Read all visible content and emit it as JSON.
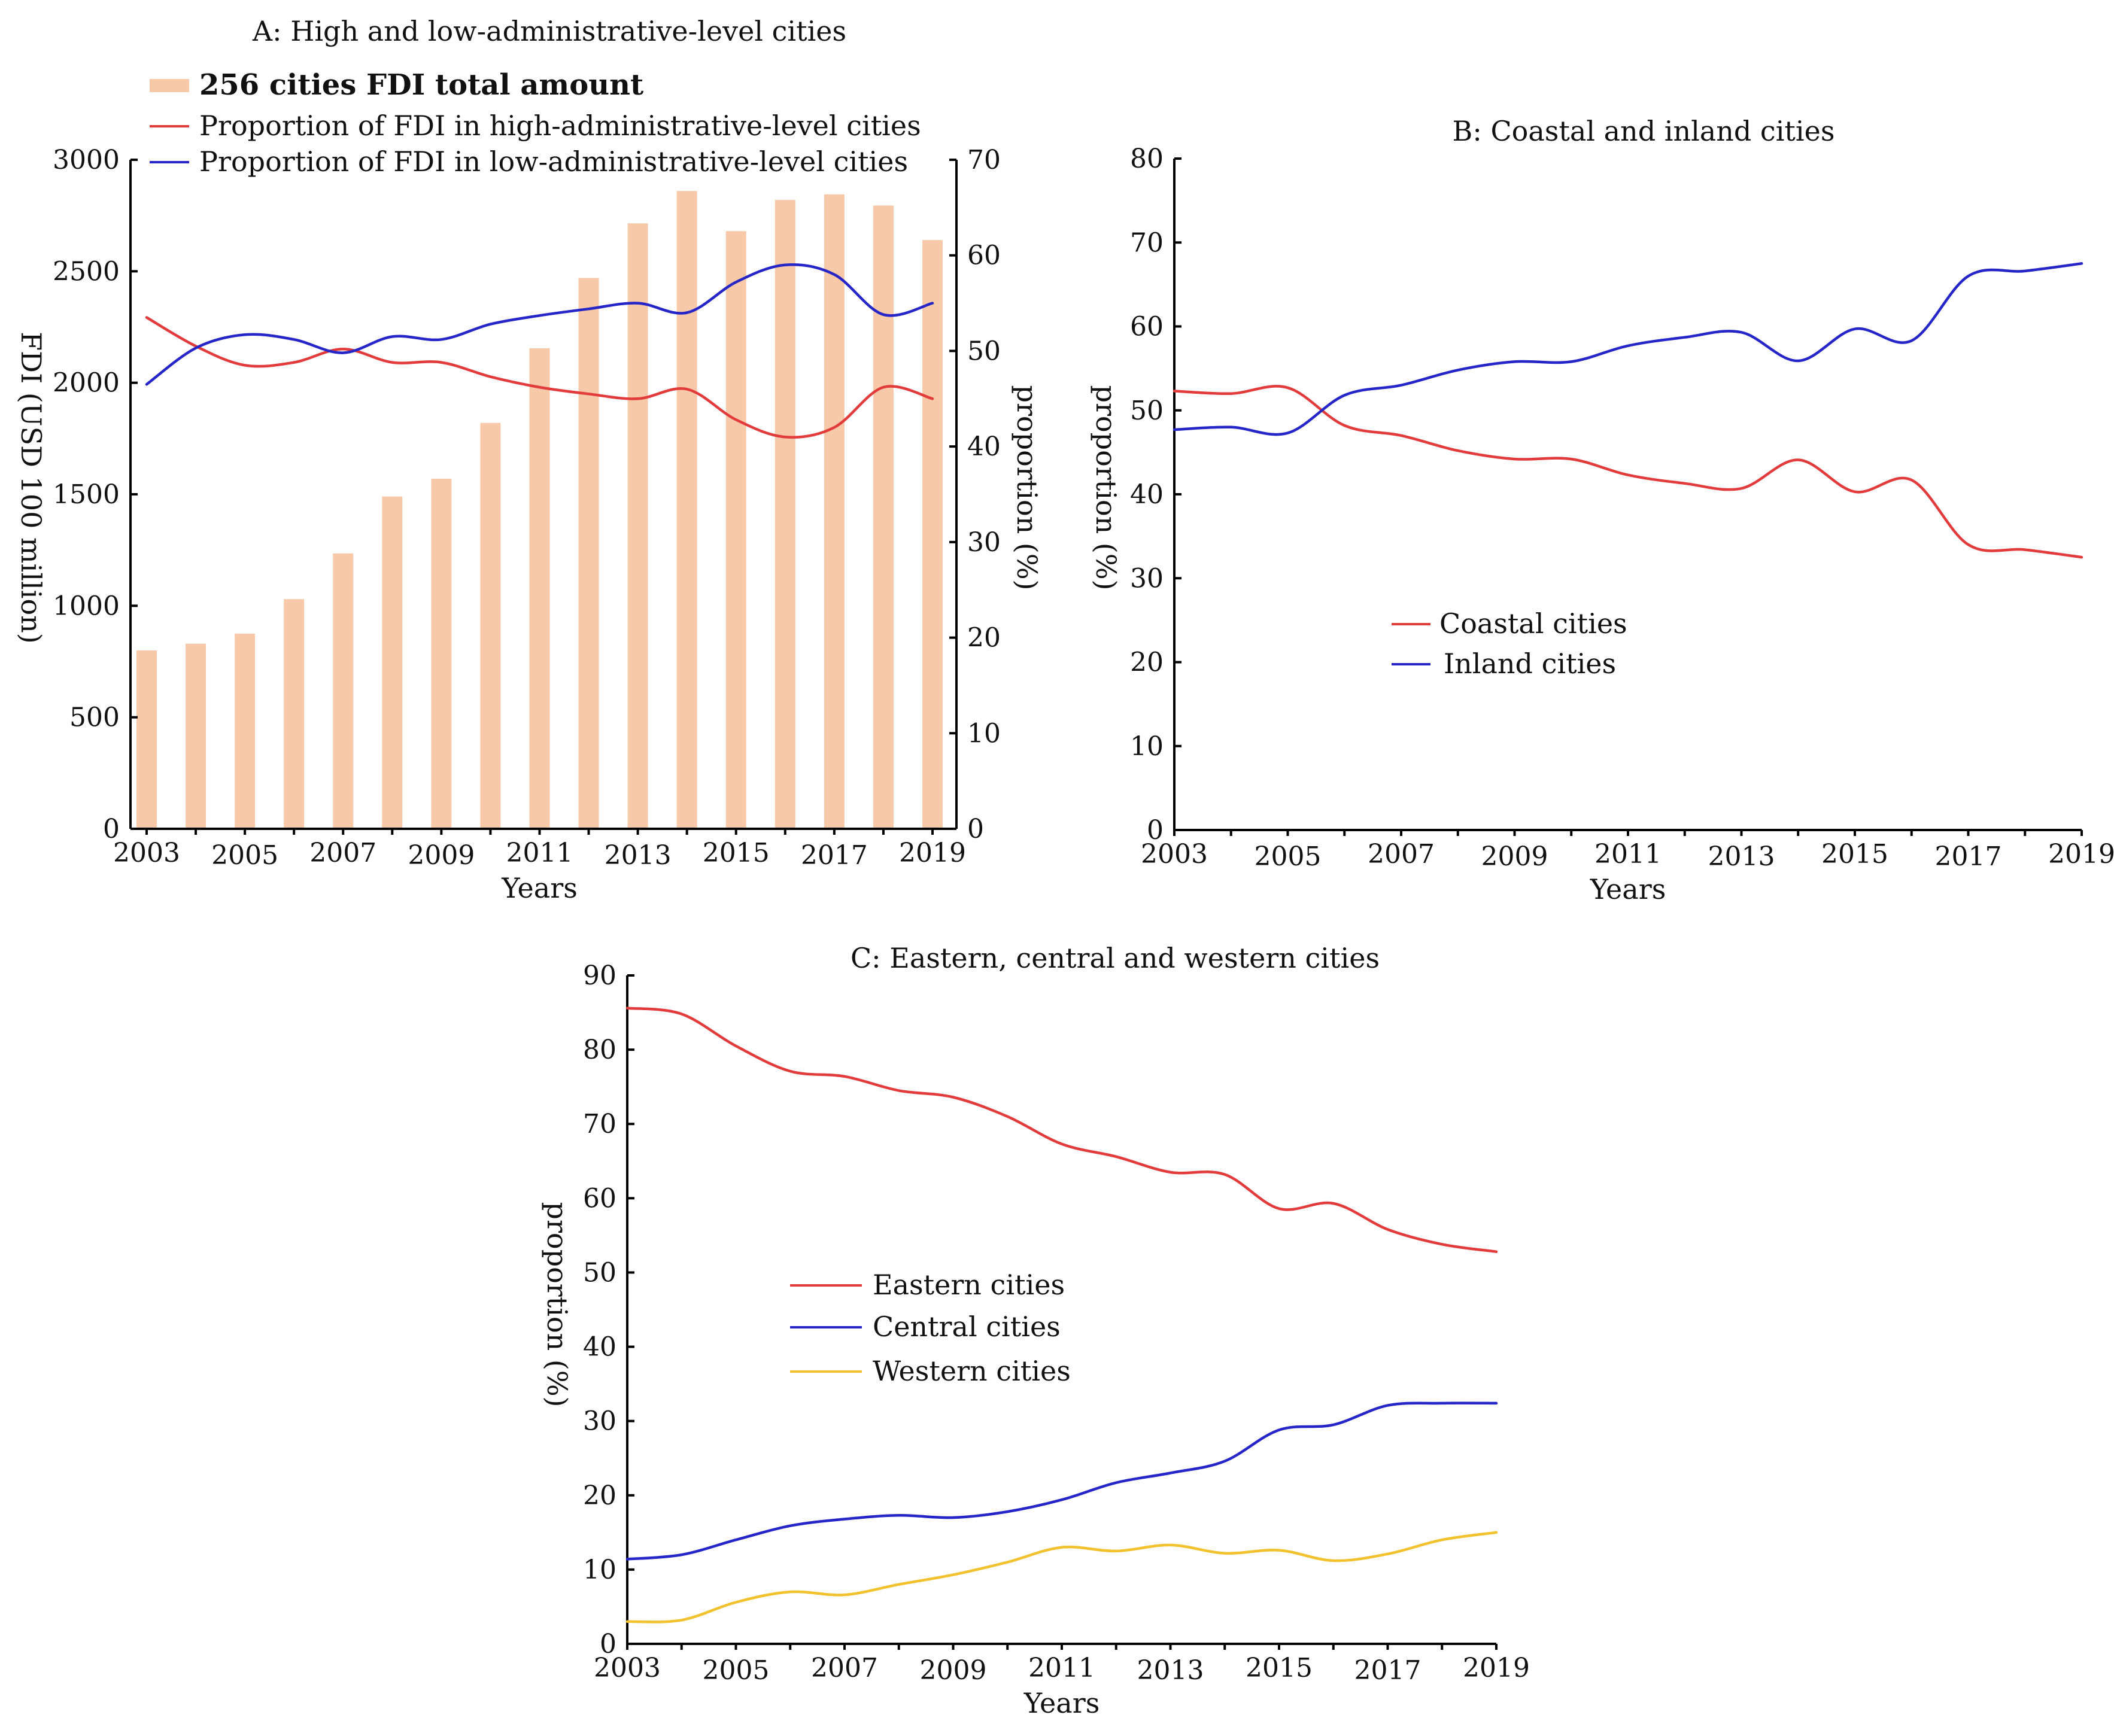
{
  "chart_data": [
    {
      "id": "A",
      "type": "bar+line",
      "title": "A: High and low-administrative-level cities",
      "xlabel": "Years",
      "ylabel_left": "FDI (USD 100 million)",
      "ylabel_right": "proportion (%)",
      "ylim_left": [
        0,
        3000
      ],
      "ylim_right": [
        0,
        70
      ],
      "yticks_left": [
        0,
        500,
        1000,
        1500,
        2000,
        2500,
        3000
      ],
      "yticks_right": [
        0,
        10,
        20,
        30,
        40,
        50,
        60,
        70
      ],
      "xtick_labels": [
        "2003",
        "2005",
        "2007",
        "2009",
        "2011",
        "2013",
        "2015",
        "2017",
        "2019"
      ],
      "categories": [
        "2003",
        "2004",
        "2005",
        "2006",
        "2007",
        "2008",
        "2009",
        "2010",
        "2011",
        "2012",
        "2013",
        "2014",
        "2015",
        "2016",
        "2017",
        "2018",
        "2019"
      ],
      "bars": {
        "name": "256 cities FDI total amount",
        "color": "#f7c9a9",
        "values": [
          800,
          830,
          875,
          1030,
          1235,
          1490,
          1570,
          1820,
          2155,
          2470,
          2715,
          2860,
          2680,
          2820,
          2845,
          2795,
          2640
        ]
      },
      "series": [
        {
          "name": "Proportion of FDI in high-administrative-level cities",
          "color": "#e23b3b",
          "values": [
            53.5,
            50.5,
            48.5,
            48.8,
            50.2,
            48.8,
            48.8,
            47.3,
            46.2,
            45.5,
            45.0,
            46.0,
            42.8,
            41.0,
            42.0,
            46.2,
            45.0
          ]
        },
        {
          "name": "Proportion of FDI in low-administrative-level cities",
          "color": "#2525c8",
          "values": [
            46.5,
            50.3,
            51.7,
            51.2,
            49.8,
            51.5,
            51.2,
            52.8,
            53.7,
            54.4,
            55.0,
            54.0,
            57.2,
            59.0,
            58.0,
            53.8,
            55.0
          ]
        }
      ]
    },
    {
      "id": "B",
      "type": "line",
      "title": "B: Coastal and inland cities",
      "xlabel": "Years",
      "ylabel": "proportion (%)",
      "ylim": [
        0,
        80
      ],
      "yticks": [
        0,
        10,
        20,
        30,
        40,
        50,
        60,
        70,
        80
      ],
      "xtick_labels": [
        "2003",
        "2005",
        "2007",
        "2009",
        "2011",
        "2013",
        "2015",
        "2017",
        "2019"
      ],
      "categories": [
        "2003",
        "2004",
        "2005",
        "2006",
        "2007",
        "2008",
        "2009",
        "2010",
        "2011",
        "2012",
        "2013",
        "2014",
        "2015",
        "2016",
        "2017",
        "2018",
        "2019"
      ],
      "series": [
        {
          "name": "Coastal cities",
          "color": "#e23b3b",
          "values": [
            52.3,
            52.0,
            52.7,
            48.2,
            47.0,
            45.2,
            44.2,
            44.2,
            42.3,
            41.3,
            40.7,
            44.1,
            40.3,
            41.7,
            34.0,
            33.4,
            32.5
          ]
        },
        {
          "name": "Inland cities",
          "color": "#2525c8",
          "values": [
            47.7,
            48.0,
            47.3,
            51.8,
            53.0,
            54.8,
            55.8,
            55.8,
            57.7,
            58.7,
            59.3,
            55.9,
            59.7,
            58.3,
            66.0,
            66.6,
            67.5
          ]
        }
      ],
      "legend_position": "center-left"
    },
    {
      "id": "C",
      "type": "line",
      "title": "C: Eastern, central and western cities",
      "xlabel": "Years",
      "ylabel": "proportion (%)",
      "ylim": [
        0,
        90
      ],
      "yticks": [
        0,
        10,
        20,
        30,
        40,
        50,
        60,
        70,
        80,
        90
      ],
      "xtick_labels": [
        "2003",
        "2005",
        "2007",
        "2009",
        "2011",
        "2013",
        "2015",
        "2017",
        "2019"
      ],
      "categories": [
        "2003",
        "2004",
        "2005",
        "2006",
        "2007",
        "2008",
        "2009",
        "2010",
        "2011",
        "2012",
        "2013",
        "2014",
        "2015",
        "2016",
        "2017",
        "2018",
        "2019"
      ],
      "series": [
        {
          "name": "Eastern cities",
          "color": "#e23b3b",
          "values": [
            85.6,
            84.8,
            80.5,
            77.1,
            76.4,
            74.5,
            73.6,
            71.0,
            67.3,
            65.6,
            63.5,
            63.2,
            58.6,
            59.3,
            55.8,
            53.8,
            52.8
          ]
        },
        {
          "name": "Central cities",
          "color": "#2525c8",
          "values": [
            11.4,
            12.0,
            14.0,
            15.9,
            16.8,
            17.3,
            17.0,
            17.8,
            19.4,
            21.7,
            23.0,
            24.6,
            28.8,
            29.5,
            32.1,
            32.4,
            32.4
          ]
        },
        {
          "name": "Western cities",
          "color": "#f2c12e",
          "values": [
            3.0,
            3.2,
            5.6,
            7.0,
            6.6,
            8.0,
            9.3,
            11.0,
            13.0,
            12.5,
            13.3,
            12.2,
            12.6,
            11.2,
            12.1,
            14.0,
            15.0
          ]
        }
      ],
      "legend_position": "center-left"
    }
  ]
}
